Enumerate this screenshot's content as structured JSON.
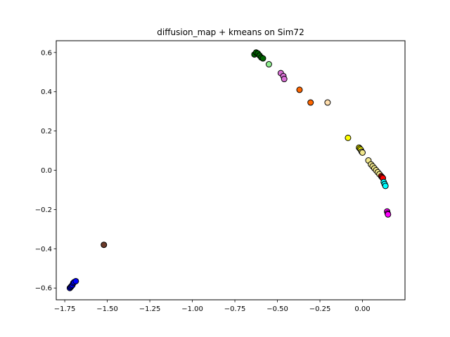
{
  "chart_data": {
    "type": "scatter",
    "title": "diffusion_map + kmeans on Sim72",
    "xlabel": "",
    "ylabel": "",
    "xlim": [
      -1.8,
      0.25
    ],
    "ylim": [
      -0.66,
      0.66
    ],
    "x_ticks": [
      -1.75,
      -1.5,
      -1.25,
      -1.0,
      -0.75,
      -0.5,
      -0.25,
      0.0
    ],
    "x_tick_labels": [
      "−1.75",
      "−1.50",
      "−1.25",
      "−1.00",
      "−0.75",
      "−0.50",
      "−0.25",
      "0.00"
    ],
    "y_ticks": [
      -0.6,
      -0.4,
      -0.2,
      0.0,
      0.2,
      0.4,
      0.6
    ],
    "y_tick_labels": [
      "−0.6",
      "−0.4",
      "−0.2",
      "0.0",
      "0.2",
      "0.4",
      "0.6"
    ],
    "grid": false,
    "legend": false,
    "series": [
      {
        "color": "#0000ff",
        "points": [
          [
            -1.72,
            -0.6
          ],
          [
            -1.715,
            -0.595
          ],
          [
            -1.71,
            -0.59
          ],
          [
            -1.705,
            -0.585
          ],
          [
            -1.7,
            -0.575
          ],
          [
            -1.695,
            -0.57
          ],
          [
            -1.685,
            -0.565
          ]
        ]
      },
      {
        "color": "#6b3a2a",
        "points": [
          [
            -1.52,
            -0.38
          ]
        ]
      },
      {
        "color": "#006400",
        "points": [
          [
            -0.635,
            0.59
          ],
          [
            -0.625,
            0.6
          ],
          [
            -0.615,
            0.595
          ],
          [
            -0.605,
            0.585
          ],
          [
            -0.595,
            0.575
          ],
          [
            -0.585,
            0.57
          ]
        ]
      },
      {
        "color": "#90ee90",
        "points": [
          [
            -0.55,
            0.54
          ]
        ]
      },
      {
        "color": "#da70d6",
        "points": [
          [
            -0.48,
            0.495
          ],
          [
            -0.465,
            0.48
          ],
          [
            -0.46,
            0.465
          ]
        ]
      },
      {
        "color": "#ff6600",
        "points": [
          [
            -0.37,
            0.41
          ],
          [
            -0.305,
            0.345
          ]
        ]
      },
      {
        "color": "#ffdead",
        "points": [
          [
            -0.205,
            0.345
          ]
        ]
      },
      {
        "color": "#ffff00",
        "points": [
          [
            -0.085,
            0.165
          ],
          [
            -0.02,
            0.115
          ],
          [
            -0.015,
            0.11
          ],
          [
            -0.01,
            0.105
          ]
        ]
      },
      {
        "color": "#f0e68c",
        "points": [
          [
            -0.005,
            0.095
          ],
          [
            0.0,
            0.09
          ],
          [
            0.035,
            0.05
          ],
          [
            0.05,
            0.03
          ],
          [
            0.06,
            0.02
          ],
          [
            0.07,
            0.01
          ],
          [
            0.08,
            0.0
          ],
          [
            0.09,
            -0.01
          ],
          [
            0.1,
            -0.02
          ]
        ]
      },
      {
        "color": "#ff0000",
        "points": [
          [
            0.11,
            -0.03
          ],
          [
            0.115,
            -0.035
          ],
          [
            0.12,
            -0.04
          ]
        ]
      },
      {
        "color": "#00ffff",
        "points": [
          [
            0.125,
            -0.06
          ],
          [
            0.13,
            -0.07
          ],
          [
            0.135,
            -0.08
          ]
        ]
      },
      {
        "color": "#ff00ff",
        "points": [
          [
            0.145,
            -0.21
          ],
          [
            0.148,
            -0.22
          ],
          [
            0.15,
            -0.225
          ]
        ]
      }
    ]
  }
}
